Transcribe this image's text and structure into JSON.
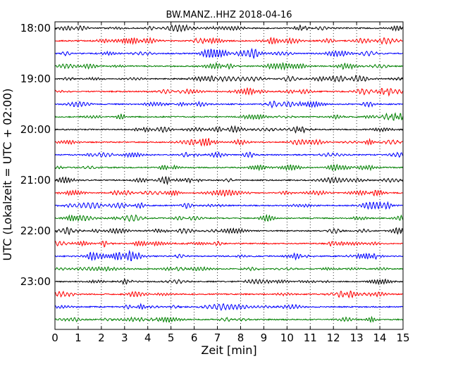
{
  "chart_data": {
    "type": "line",
    "title": "BW.MANZ..HHZ 2018-04-16",
    "xlabel": "Zeit  [min]",
    "ylabel": "UTC (Lokalzeit = UTC + 02:00)",
    "xlim": [
      0,
      15
    ],
    "x_ticks": [
      0,
      1,
      2,
      3,
      4,
      5,
      6,
      7,
      8,
      9,
      10,
      11,
      12,
      13,
      14,
      15
    ],
    "y_tick_labels": [
      "18:00",
      "19:00",
      "20:00",
      "21:00",
      "22:00",
      "23:00"
    ],
    "grid": true,
    "traces_per_hour": 4,
    "trace_start_times": [
      "18:00",
      "18:15",
      "18:30",
      "18:45",
      "19:00",
      "19:15",
      "19:30",
      "19:45",
      "20:00",
      "20:15",
      "20:30",
      "20:45",
      "21:00",
      "21:15",
      "21:30",
      "21:45",
      "22:00",
      "22:15",
      "22:30",
      "22:45",
      "23:00",
      "23:15",
      "23:30",
      "23:45"
    ],
    "trace_color_cycle": [
      "#000000",
      "#ff0000",
      "#0000ff",
      "#008000"
    ]
  }
}
